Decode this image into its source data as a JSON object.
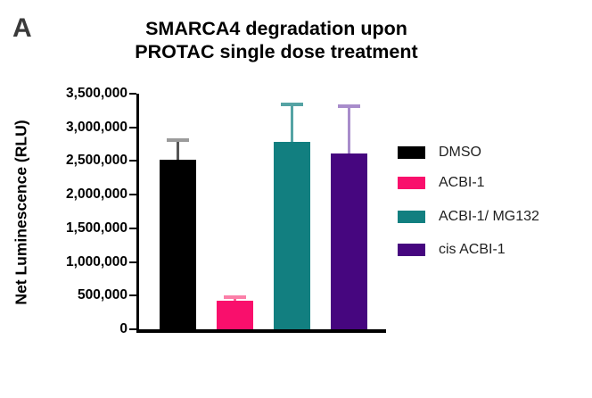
{
  "panel_label": "A",
  "title": {
    "line1": "SMARCA4 degradation upon",
    "line2": "PROTAC single dose treatment"
  },
  "chart_data": {
    "type": "bar",
    "title": "SMARCA4 degradation upon PROTAC single dose treatment",
    "xlabel": "",
    "ylabel": "Net Luminescence (RLU)",
    "ylim": [
      0,
      3500000
    ],
    "grid": false,
    "legend_position": "right",
    "x_tick_labels_shown": false,
    "error_bars": "sd, upper only",
    "yticks": [
      {
        "value": 0,
        "label": "0"
      },
      {
        "value": 500000,
        "label": "500,000"
      },
      {
        "value": 1000000,
        "label": "1,000,000"
      },
      {
        "value": 1500000,
        "label": "1,500,000"
      },
      {
        "value": 2000000,
        "label": "2,000,000"
      },
      {
        "value": 2500000,
        "label": "2,500,000"
      },
      {
        "value": 3000000,
        "label": "3,000,000"
      },
      {
        "value": 3500000,
        "label": "3,500,000"
      }
    ],
    "categories": [
      "DMSO",
      "ACBI-1",
      "ACBI-1/ MG132",
      "cis ACBI-1"
    ],
    "series": [
      {
        "name": "DMSO",
        "mean": 2520000,
        "sd": 290000,
        "color": "#000000",
        "error_color": "#9b9b9b",
        "stem_color": "#555555"
      },
      {
        "name": "ACBI-1",
        "mean": 420000,
        "sd": 60000,
        "color": "#f90f6c",
        "error_color": "#fb7fa8",
        "stem_color": "#fb5c92"
      },
      {
        "name": "ACBI-1/ MG132",
        "mean": 2790000,
        "sd": 550000,
        "color": "#127f80",
        "error_color": "#55a3a4",
        "stem_color": "#55a3a4"
      },
      {
        "name": "cis ACBI-1",
        "mean": 2610000,
        "sd": 700000,
        "color": "#46067f",
        "error_color": "#a88ccb",
        "stem_color": "#a88ccb"
      }
    ]
  }
}
